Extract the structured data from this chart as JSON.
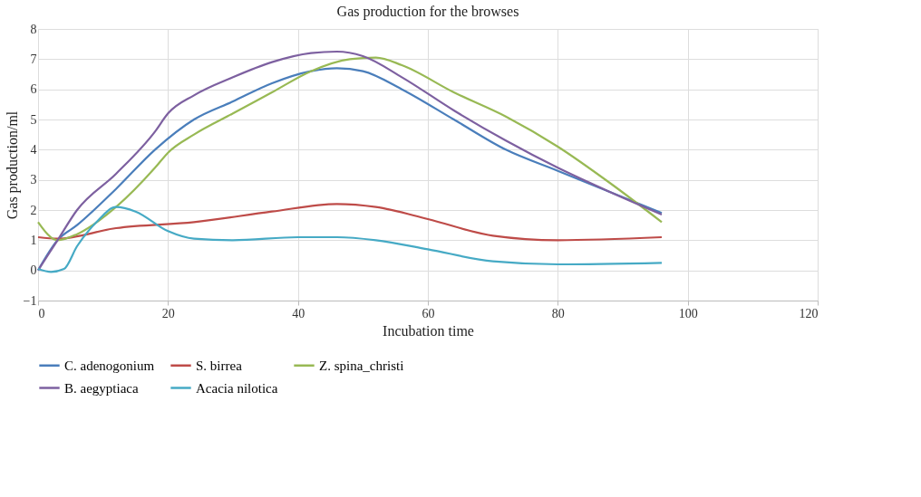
{
  "chart_data": {
    "type": "line",
    "title": "Gas production for the browses",
    "xlabel": "Incubation time",
    "ylabel": "Gas production/ml",
    "xlim": [
      0,
      120
    ],
    "xticks": [
      0,
      20,
      40,
      60,
      80,
      100,
      120
    ],
    "ylim": [
      -1,
      8
    ],
    "yticks": [
      -1,
      0,
      1,
      2,
      3,
      4,
      5,
      6,
      7,
      8
    ],
    "grid": true,
    "legend": "bottom",
    "marker": "none",
    "line_style": "solid",
    "series": [
      {
        "name": "C. adenogonium",
        "color": "#4a7ebb",
        "x": [
          0,
          3,
          6,
          12,
          18,
          24,
          30,
          36,
          42,
          46,
          50,
          56,
          64,
          72,
          80,
          88,
          96
        ],
        "values": [
          0,
          1.0,
          1.5,
          2.7,
          4.0,
          5.0,
          5.6,
          6.2,
          6.6,
          6.7,
          6.6,
          6.0,
          5.0,
          4.0,
          3.3,
          2.6,
          1.9
        ]
      },
      {
        "name": "S. birrea",
        "color": "#be4b48",
        "x": [
          0,
          3,
          12,
          24,
          36,
          46,
          52,
          60,
          70,
          80,
          96
        ],
        "values": [
          1.1,
          1.05,
          1.4,
          1.6,
          1.95,
          2.2,
          2.1,
          1.7,
          1.15,
          1.0,
          1.1
        ]
      },
      {
        "name": "Z. spina_christi",
        "color": "#98b954",
        "x": [
          0,
          3,
          6,
          12,
          18,
          20,
          24,
          30,
          36,
          42,
          48,
          52,
          56,
          64,
          72,
          80,
          88,
          96
        ],
        "values": [
          1.6,
          1.0,
          1.2,
          2.1,
          3.4,
          3.9,
          4.5,
          5.2,
          5.9,
          6.6,
          7.0,
          7.05,
          6.8,
          5.9,
          5.1,
          4.1,
          2.9,
          1.6
        ]
      },
      {
        "name": "B. aegyptiaca",
        "color": "#7d60a0",
        "x": [
          0,
          3,
          6,
          12,
          18,
          20,
          24,
          30,
          36,
          42,
          46,
          50,
          56,
          64,
          72,
          80,
          88,
          96
        ],
        "values": [
          0,
          1.0,
          2.0,
          3.2,
          4.6,
          5.2,
          5.8,
          6.4,
          6.9,
          7.2,
          7.25,
          7.1,
          6.4,
          5.3,
          4.3,
          3.4,
          2.6,
          1.85
        ]
      },
      {
        "name": "Acacia nilotica",
        "color": "#46aac5",
        "x": [
          0,
          2,
          4,
          6,
          9,
          12,
          15,
          20,
          24,
          30,
          40,
          46,
          52,
          60,
          70,
          80,
          96
        ],
        "values": [
          0.05,
          -0.05,
          0.05,
          0.8,
          1.6,
          2.1,
          1.95,
          1.3,
          1.05,
          1.0,
          1.1,
          1.1,
          1.0,
          0.7,
          0.3,
          0.2,
          0.25
        ]
      }
    ]
  }
}
